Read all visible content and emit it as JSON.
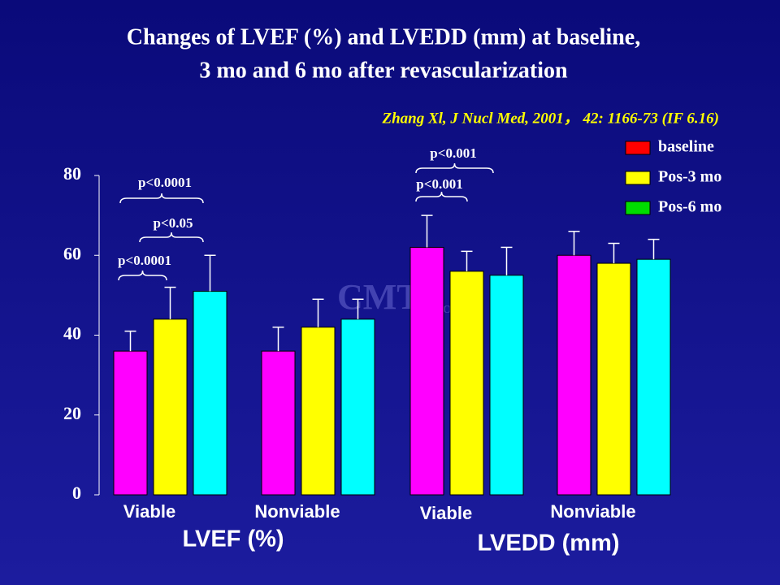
{
  "chart_data": {
    "type": "bar",
    "title": [
      "Changes of LVEF (%) and LVEDD (mm) at baseline,",
      "3 mo and 6 mo after revascularization"
    ],
    "subtitle": "Zhang Xl, J Nucl Med, 2001， 42: 1166-73 (IF 6.16)",
    "watermark": [
      "CMTT",
      "Online"
    ],
    "categories": [
      "Viable",
      "Nonviable",
      "Viable",
      "Nonviable"
    ],
    "groups": [
      "LVEF (%)",
      "LVEDD (mm)"
    ],
    "series": [
      {
        "name": "baseline",
        "color": "#ff00ff",
        "legend_color": "#ff0000",
        "values": [
          36,
          36,
          62,
          60
        ],
        "errors": [
          5,
          6,
          8,
          6
        ]
      },
      {
        "name": "Pos-3 mo",
        "color": "#ffff00",
        "legend_color": "#ffff00",
        "values": [
          44,
          42,
          56,
          58
        ],
        "errors": [
          8,
          7,
          5,
          5
        ]
      },
      {
        "name": "Pos-6 mo",
        "color": "#00ffff",
        "legend_color": "#00dd00",
        "values": [
          51,
          44,
          55,
          59
        ],
        "errors": [
          9,
          5,
          7,
          5
        ]
      }
    ],
    "annotations": [
      "p<0.0001",
      "p<0.05",
      "p<0.0001",
      "p<0.001",
      "p<0.001"
    ],
    "ylim": [
      0,
      80
    ],
    "yticks": [
      0,
      20,
      40,
      60,
      80
    ],
    "legend": "top-right"
  }
}
